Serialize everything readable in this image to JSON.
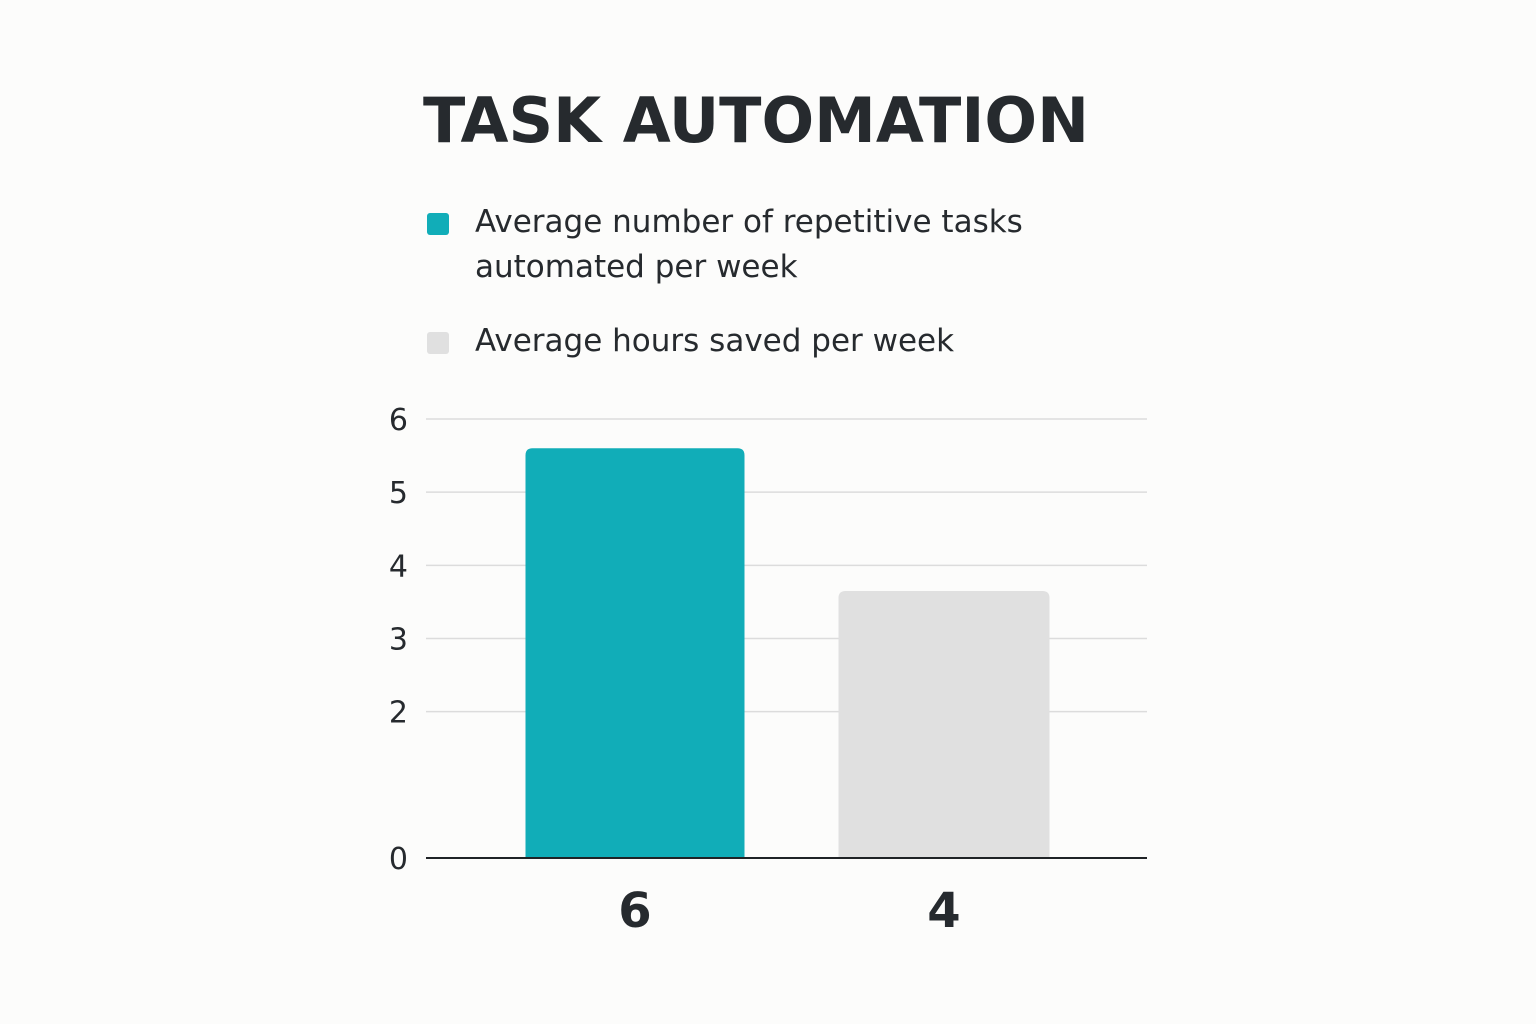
{
  "chart_data": {
    "type": "bar",
    "title": "TASK AUTOMATION",
    "categories": [
      "6",
      "4"
    ],
    "values": [
      5.6,
      3.65
    ],
    "bar_colors": [
      "#11adb8",
      "#e0e0e0"
    ],
    "legend": [
      {
        "label": "Average number of repetitive tasks automated per week",
        "color": "#11adb8"
      },
      {
        "label": "Average hours saved per week",
        "color": "#e0e0e0"
      }
    ],
    "legend_position": "top",
    "yticks": [
      "0",
      "2",
      "3",
      "4",
      "5",
      "6"
    ],
    "ytick_values": [
      0,
      2,
      3,
      4,
      5,
      6
    ],
    "ylim": [
      0,
      6
    ],
    "grid": true,
    "xlabel": "",
    "ylabel": ""
  }
}
